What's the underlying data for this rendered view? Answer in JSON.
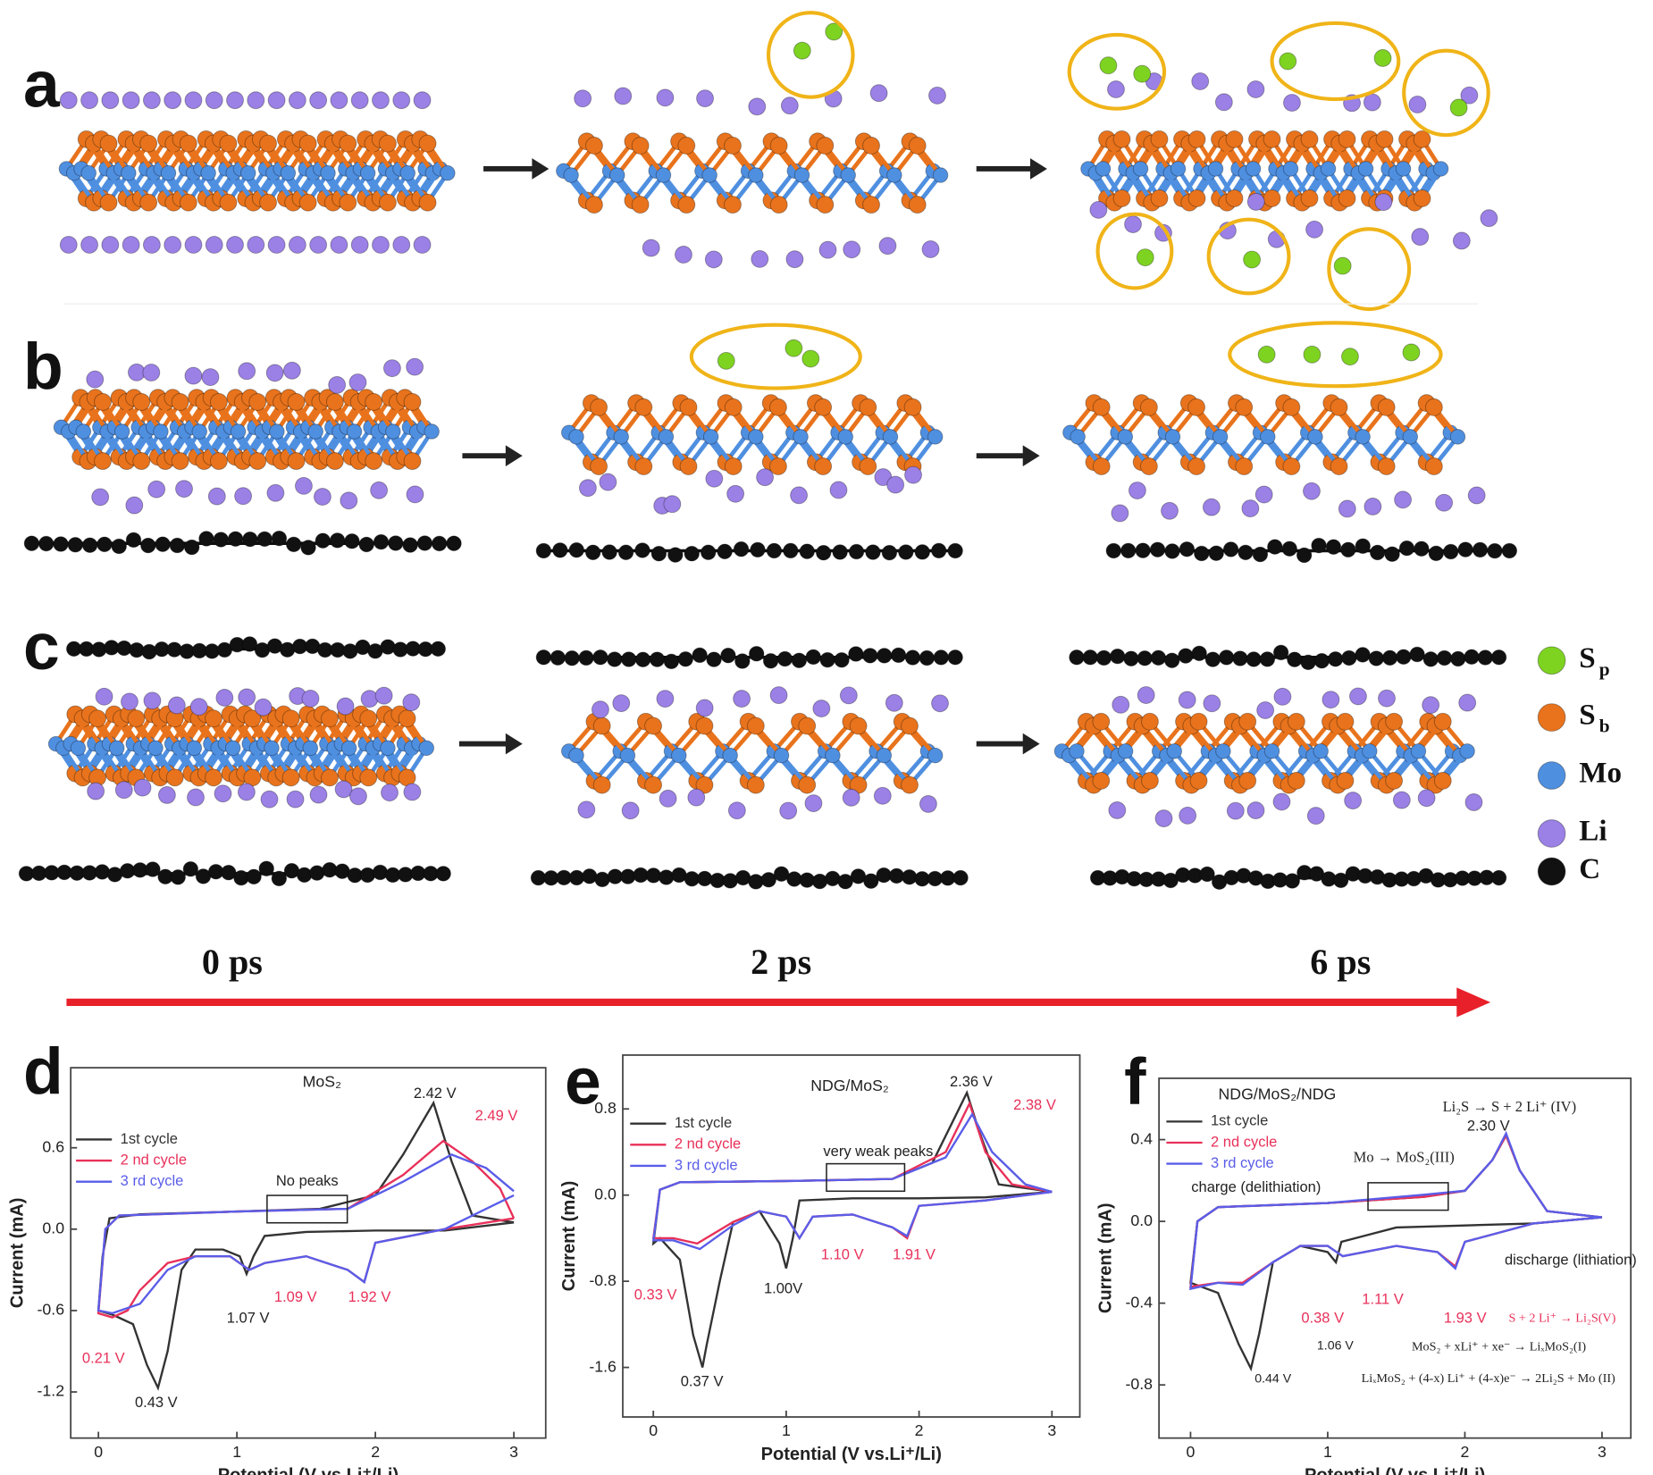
{
  "panel_labels": [
    "a",
    "b",
    "c",
    "d",
    "e",
    "f"
  ],
  "time_labels": [
    "0 ps",
    "2 ps",
    "6 ps"
  ],
  "atom_legend": [
    {
      "symbol": "S",
      "sub": "p",
      "color": "#7ed321"
    },
    {
      "symbol": "S",
      "sub": "b",
      "color": "#e8731c"
    },
    {
      "symbol": "Mo",
      "color": "#4f8fe0"
    },
    {
      "symbol": "Li",
      "color": "#9b80e6"
    },
    {
      "symbol": "C",
      "color": "#111111"
    }
  ],
  "chart_data": [
    {
      "type": "line",
      "title": "MoS₂",
      "xlabel": "Potential (V vs.Li⁺/Li)",
      "ylabel": "Current (mA)",
      "xlim": [
        -0.2,
        3.23
      ],
      "ylim": [
        -1.54,
        1.19
      ],
      "xticks": [
        0,
        1,
        2,
        3
      ],
      "yticks": [
        0.6,
        {
          "value": 0,
          "label": "0.0"
        },
        -0.6,
        -1.2
      ],
      "series": [
        {
          "name": "1st cycle",
          "color": "#333333",
          "x": [
            3.0,
            2.5,
            2.0,
            1.5,
            1.2,
            1.12,
            1.07,
            1.02,
            0.9,
            0.7,
            0.6,
            0.5,
            0.43,
            0.35,
            0.25,
            0.1,
            0.0,
            0.03,
            0.08,
            0.3,
            1.0,
            1.6,
            2.0,
            2.2,
            2.42,
            2.55,
            2.7,
            3.0
          ],
          "values": [
            0.05,
            -0.01,
            -0.01,
            -0.02,
            -0.05,
            -0.2,
            -0.33,
            -0.2,
            -0.15,
            -0.15,
            -0.3,
            -0.9,
            -1.17,
            -1.0,
            -0.7,
            -0.63,
            -0.6,
            -0.2,
            0.08,
            0.11,
            0.13,
            0.15,
            0.25,
            0.55,
            0.93,
            0.5,
            0.1,
            0.05
          ]
        },
        {
          "name": "2 nd cycle",
          "color": "#e8315a",
          "x": [
            3.0,
            2.5,
            2.0,
            1.92,
            1.8,
            1.5,
            1.2,
            1.09,
            0.95,
            0.7,
            0.5,
            0.3,
            0.21,
            0.1,
            0.0,
            0.05,
            0.15,
            1.0,
            1.8,
            2.2,
            2.49,
            2.7,
            2.9,
            3.0
          ],
          "values": [
            0.08,
            0.0,
            -0.1,
            -0.39,
            -0.3,
            -0.2,
            -0.25,
            -0.3,
            -0.2,
            -0.2,
            -0.25,
            -0.45,
            -0.6,
            -0.65,
            -0.62,
            0.0,
            0.1,
            0.13,
            0.15,
            0.4,
            0.65,
            0.5,
            0.3,
            0.08
          ]
        },
        {
          "name": "3 rd cycle",
          "color": "#5a5de8",
          "x": [
            3.0,
            2.5,
            2.0,
            1.92,
            1.8,
            1.5,
            1.2,
            1.09,
            0.95,
            0.7,
            0.5,
            0.3,
            0.1,
            0.0,
            0.05,
            0.15,
            1.0,
            1.8,
            2.2,
            2.55,
            2.8,
            3.0
          ],
          "values": [
            0.25,
            0.0,
            -0.1,
            -0.39,
            -0.3,
            -0.2,
            -0.25,
            -0.3,
            -0.2,
            -0.2,
            -0.3,
            -0.55,
            -0.62,
            -0.6,
            0.0,
            0.1,
            0.13,
            0.15,
            0.35,
            0.55,
            0.45,
            0.28
          ]
        }
      ],
      "annotations": [
        {
          "text": "2.42 V",
          "color": "#222222"
        },
        {
          "text": "2.49 V",
          "color": "#e8315a"
        },
        {
          "text": "No peaks",
          "color": "#222222"
        },
        {
          "text": "1.07 V",
          "color": "#222222"
        },
        {
          "text": "1.09 V",
          "color": "#e8315a"
        },
        {
          "text": "1.92 V",
          "color": "#e8315a"
        },
        {
          "text": "0.21 V",
          "color": "#e8315a"
        },
        {
          "text": "0.43 V",
          "color": "#222222"
        }
      ]
    },
    {
      "type": "line",
      "title": "NDG/MoS₂",
      "xlabel": "Potential (V vs.Li⁺/Li)",
      "ylabel": "Current (mA)",
      "xlim": [
        -0.23,
        3.21
      ],
      "ylim": [
        -2.06,
        1.3
      ],
      "xticks": [
        0,
        1,
        2,
        3
      ],
      "yticks": [
        0.8,
        {
          "value": 0,
          "label": "0.0"
        },
        -0.8,
        -1.6
      ],
      "series": [
        {
          "name": "1st cycle",
          "color": "#333333",
          "x": [
            3.0,
            2.5,
            2.0,
            1.5,
            1.1,
            1.05,
            1.0,
            0.95,
            0.8,
            0.6,
            0.5,
            0.4,
            0.37,
            0.3,
            0.2,
            0.05,
            0.0,
            0.05,
            0.2,
            1.0,
            1.8,
            2.1,
            2.3,
            2.36,
            2.45,
            2.6,
            3.0
          ],
          "values": [
            0.03,
            -0.02,
            -0.03,
            -0.03,
            -0.05,
            -0.4,
            -0.68,
            -0.45,
            -0.15,
            -0.25,
            -0.8,
            -1.4,
            -1.6,
            -1.3,
            -0.6,
            -0.4,
            -0.45,
            0.05,
            0.12,
            0.13,
            0.15,
            0.3,
            0.8,
            0.95,
            0.6,
            0.1,
            0.03
          ]
        },
        {
          "name": "2 nd cycle",
          "color": "#e8315a",
          "x": [
            3.0,
            2.5,
            2.0,
            1.91,
            1.8,
            1.5,
            1.2,
            1.1,
            1.0,
            0.8,
            0.6,
            0.33,
            0.15,
            0.0,
            0.05,
            0.2,
            1.0,
            1.8,
            2.2,
            2.38,
            2.5,
            2.7,
            3.0
          ],
          "values": [
            0.03,
            -0.05,
            -0.1,
            -0.4,
            -0.3,
            -0.18,
            -0.2,
            -0.4,
            -0.2,
            -0.15,
            -0.25,
            -0.45,
            -0.4,
            -0.4,
            0.05,
            0.12,
            0.13,
            0.15,
            0.4,
            0.85,
            0.4,
            0.1,
            0.03
          ]
        },
        {
          "name": "3 rd cycle",
          "color": "#5a5de8",
          "x": [
            3.0,
            2.5,
            2.0,
            1.91,
            1.8,
            1.5,
            1.2,
            1.1,
            1.0,
            0.8,
            0.6,
            0.35,
            0.15,
            0.0,
            0.05,
            0.2,
            1.0,
            1.8,
            2.2,
            2.4,
            2.55,
            2.8,
            3.0
          ],
          "values": [
            0.03,
            -0.05,
            -0.1,
            -0.38,
            -0.3,
            -0.18,
            -0.2,
            -0.4,
            -0.2,
            -0.15,
            -0.28,
            -0.5,
            -0.42,
            -0.42,
            0.05,
            0.12,
            0.13,
            0.15,
            0.35,
            0.75,
            0.4,
            0.1,
            0.03
          ]
        }
      ],
      "annotations": [
        {
          "text": "2.36 V",
          "color": "#222222"
        },
        {
          "text": "2.38 V",
          "color": "#e8315a"
        },
        {
          "text": "very weak peaks",
          "color": "#222222"
        },
        {
          "text": "1.10 V",
          "color": "#e8315a"
        },
        {
          "text": "1.91 V",
          "color": "#e8315a"
        },
        {
          "text": "0.33 V",
          "color": "#e8315a"
        },
        {
          "text": "1.00V",
          "color": "#222222"
        },
        {
          "text": "0.37 V",
          "color": "#222222"
        }
      ]
    },
    {
      "type": "line",
      "title": "NDG/MoS₂/NDG",
      "xlabel": "Potential (V vs.Li⁺/Li)",
      "ylabel": "Current (mA)",
      "xlim": [
        -0.23,
        3.21
      ],
      "ylim": [
        -1.06,
        0.7
      ],
      "xticks": [
        0,
        1,
        2,
        3
      ],
      "yticks": [
        0.4,
        {
          "value": 0,
          "label": "0.0"
        },
        -0.4,
        -0.8
      ],
      "series": [
        {
          "name": "1st cycle",
          "color": "#333333",
          "x": [
            3.0,
            2.5,
            2.0,
            1.5,
            1.1,
            1.06,
            1.0,
            0.8,
            0.6,
            0.5,
            0.44,
            0.35,
            0.2,
            0.0,
            0.05,
            0.2,
            1.0,
            1.7,
            2.0,
            2.2,
            2.3,
            2.4,
            2.6,
            3.0
          ],
          "values": [
            0.02,
            -0.01,
            -0.02,
            -0.03,
            -0.1,
            -0.2,
            -0.15,
            -0.12,
            -0.2,
            -0.55,
            -0.72,
            -0.6,
            -0.35,
            -0.3,
            0.0,
            0.07,
            0.09,
            0.12,
            0.15,
            0.3,
            0.42,
            0.25,
            0.05,
            0.02
          ]
        },
        {
          "name": "2 nd cycle",
          "color": "#e8315a",
          "x": [
            3.0,
            2.5,
            2.0,
            1.93,
            1.8,
            1.5,
            1.11,
            1.0,
            0.8,
            0.6,
            0.38,
            0.2,
            0.0,
            0.05,
            0.2,
            1.0,
            1.7,
            2.0,
            2.2,
            2.3,
            2.4,
            2.6,
            3.0
          ],
          "values": [
            0.02,
            -0.01,
            -0.1,
            -0.22,
            -0.15,
            -0.12,
            -0.17,
            -0.12,
            -0.12,
            -0.2,
            -0.3,
            -0.3,
            -0.32,
            0.0,
            0.07,
            0.09,
            0.12,
            0.15,
            0.3,
            0.42,
            0.25,
            0.05,
            0.02
          ]
        },
        {
          "name": "3 rd cycle",
          "color": "#5a5de8",
          "x": [
            3.0,
            2.5,
            2.0,
            1.93,
            1.8,
            1.5,
            1.11,
            1.0,
            0.8,
            0.6,
            0.38,
            0.2,
            0.0,
            0.05,
            0.2,
            1.0,
            1.7,
            2.0,
            2.2,
            2.3,
            2.4,
            2.6,
            3.0
          ],
          "values": [
            0.02,
            -0.01,
            -0.1,
            -0.23,
            -0.15,
            -0.12,
            -0.17,
            -0.12,
            -0.12,
            -0.2,
            -0.31,
            -0.3,
            -0.33,
            0.0,
            0.07,
            0.09,
            0.13,
            0.15,
            0.3,
            0.43,
            0.25,
            0.05,
            0.02
          ]
        }
      ],
      "annotations": [
        {
          "text": "Li₂S → S + 2 Li⁺ (IV)",
          "color": "#222222"
        },
        {
          "text": "2.30 V",
          "color": "#222222"
        },
        {
          "text": "Mo → MoS₂(III)",
          "color": "#222222"
        },
        {
          "text": "charge (delithiation)",
          "color": "#222222"
        },
        {
          "text": "discharge (lithiation)",
          "color": "#222222"
        },
        {
          "text": "1.11 V",
          "color": "#e8315a"
        },
        {
          "text": "0.38 V",
          "color": "#e8315a"
        },
        {
          "text": "1.93 V",
          "color": "#e8315a"
        },
        {
          "text": "S + 2 Li⁺ → Li₂S(V)",
          "color": "#e8315a"
        },
        {
          "text": "1.06 V",
          "color": "#222222"
        },
        {
          "text": "MoS₂ + xLi⁺ + xe⁻ → LiₓMoS₂(I)",
          "color": "#222222"
        },
        {
          "text": "0.44 V",
          "color": "#222222"
        },
        {
          "text": "LiₓMoS₂ + (4-x) Li⁺ + (4-x)e⁻ → 2Li₂S + Mo (II)",
          "color": "#222222"
        }
      ]
    }
  ]
}
